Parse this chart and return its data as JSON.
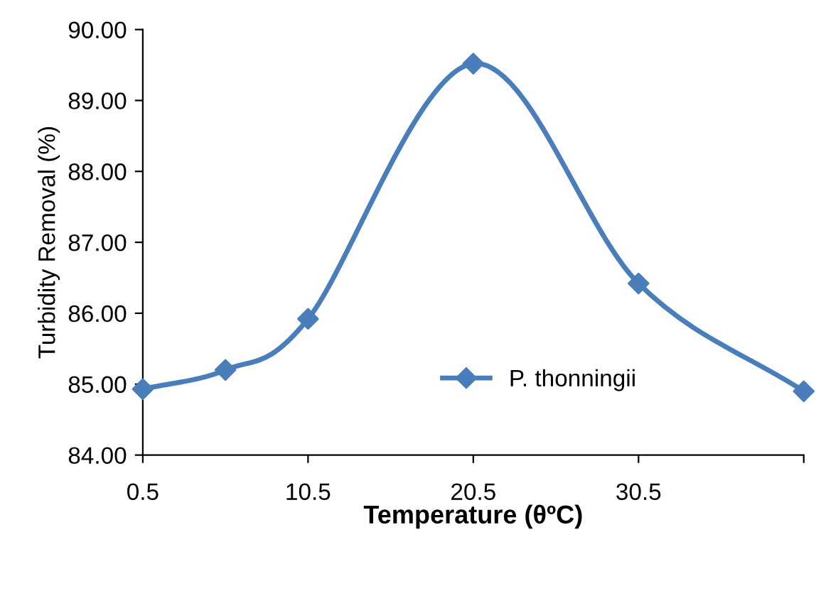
{
  "chart_data": {
    "type": "line",
    "xlabel": "Temperature (θºC)",
    "ylabel": "Turbidity Removal (%)",
    "x": [
      0.5,
      5.5,
      10.5,
      20.5,
      30.5,
      40.5
    ],
    "series": [
      {
        "name": "P. thonningii",
        "color": "#4a7ebb",
        "values": [
          84.93,
          85.2,
          85.92,
          89.52,
          86.42,
          84.9
        ]
      }
    ],
    "xlim": [
      0.5,
      40.5
    ],
    "xticks": [
      0.5,
      10.5,
      20.5,
      30.5,
      {
        "value": 40.5,
        "label": null
      }
    ],
    "ylim": [
      84,
      90
    ],
    "yticks": [
      {
        "value": 84,
        "label": "84.00"
      },
      {
        "value": 85,
        "label": "85.00"
      },
      {
        "value": 86,
        "label": "86.00"
      },
      {
        "value": 87,
        "label": "87.00"
      },
      {
        "value": 88,
        "label": "88.00"
      },
      {
        "value": 89,
        "label": "89.00"
      },
      {
        "value": 90,
        "label": "90.00"
      }
    ],
    "grid": false,
    "legend": "bottom",
    "marker": "diamond",
    "line_style": "solid"
  }
}
